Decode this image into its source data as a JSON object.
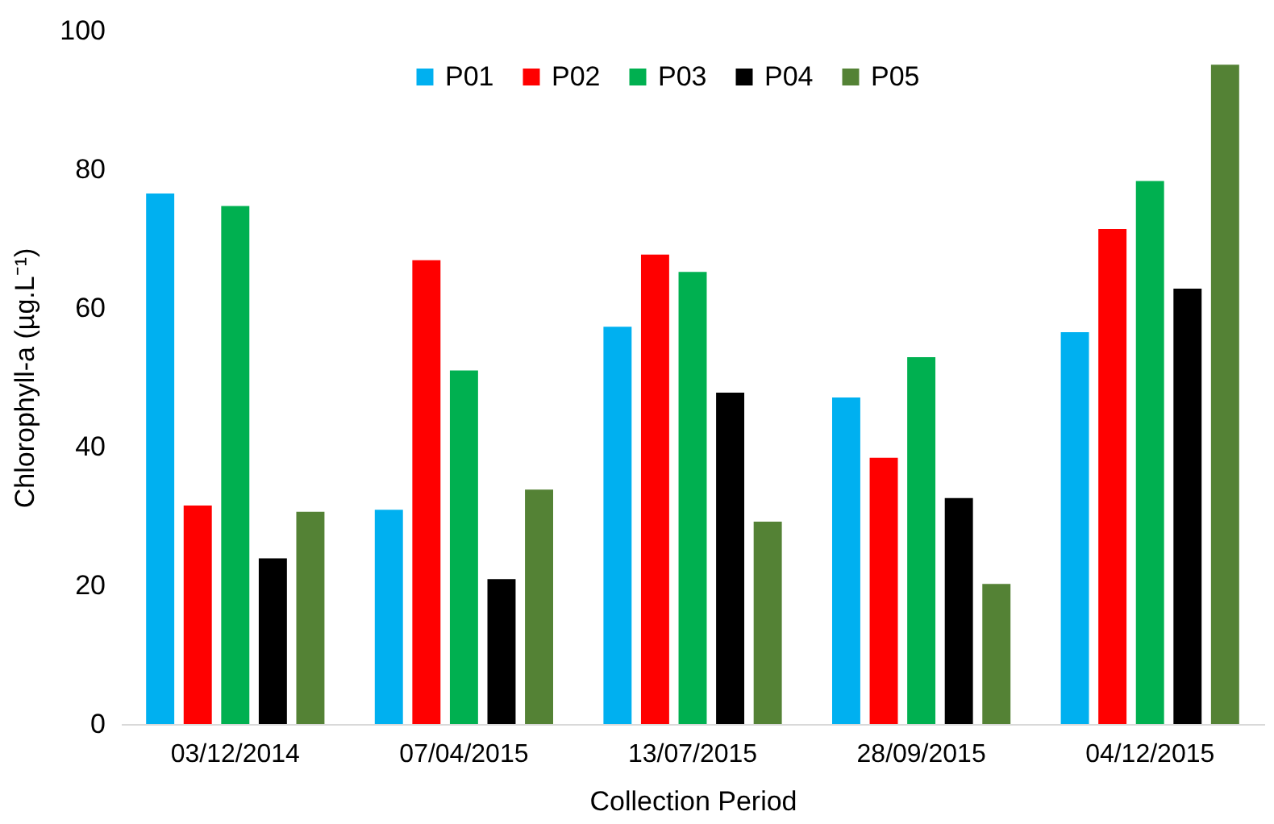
{
  "chart_data": {
    "type": "bar",
    "xlabel": "Collection Period",
    "ylabel": "Chlorophyll-a  (µg.L⁻¹)",
    "categories": [
      "03/12/2014",
      "07/04/2015",
      "13/07/2015",
      "28/09/2015",
      "04/12/2015"
    ],
    "series": [
      {
        "name": "P01",
        "color": "#00b0f0",
        "values": [
          76.5,
          30.9,
          57.3,
          47.1,
          56.5
        ]
      },
      {
        "name": "P02",
        "color": "#ff0000",
        "values": [
          31.5,
          66.9,
          67.7,
          38.4,
          71.4
        ]
      },
      {
        "name": "P03",
        "color": "#00b050",
        "values": [
          74.7,
          51,
          65.2,
          52.9,
          78.3
        ]
      },
      {
        "name": "P04",
        "color": "#000000",
        "values": [
          23.9,
          20.9,
          47.8,
          32.6,
          62.8
        ]
      },
      {
        "name": "P05",
        "color": "#548235",
        "values": [
          30.6,
          33.8,
          29.2,
          20.2,
          95.1
        ]
      }
    ],
    "ylim": [
      0,
      100
    ],
    "yticks": [
      0,
      20,
      40,
      60,
      80,
      100
    ],
    "grid": false,
    "legend": "top"
  }
}
